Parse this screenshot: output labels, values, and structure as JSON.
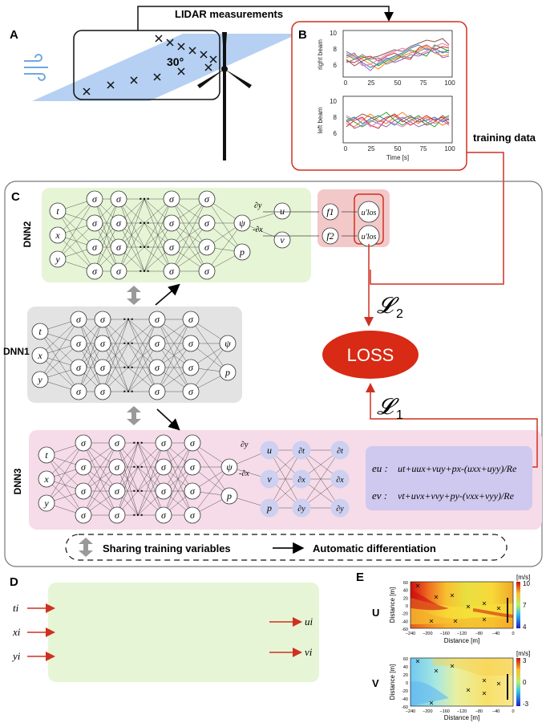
{
  "panels": {
    "a": "A",
    "b": "B",
    "c": "C",
    "d": "D",
    "e": "E"
  },
  "lidar": {
    "title": "LIDAR measurements",
    "angle": "30°"
  },
  "plots": {
    "right": {
      "ylabel": "right beam",
      "yticks": [
        "10",
        "8",
        "6"
      ],
      "xticks": [
        "0",
        "25",
        "50",
        "75",
        "100"
      ]
    },
    "left": {
      "ylabel": "left beam",
      "yticks": [
        "10",
        "8",
        "6"
      ],
      "xticks": [
        "0",
        "25",
        "50",
        "75",
        "100"
      ],
      "xlabel": "Time [s]"
    }
  },
  "training_data": "training data",
  "networks": {
    "dnn1": "DNN1",
    "dnn2": "DNN2",
    "dnn3": "DNN3"
  },
  "symbols": {
    "t": "t",
    "x": "x",
    "y": "y",
    "sigma": "σ",
    "dots": "⋯",
    "psi": "ψ",
    "p": "p",
    "u": "u",
    "v": "v",
    "dy": "∂y",
    "mdx": "-∂x",
    "dt": "∂t",
    "dx": "∂x",
    "f1": "f1",
    "f2": "f2",
    "ulos1": "u'los",
    "ulos2": "u'los"
  },
  "loss": {
    "label": "LOSS",
    "l2": "𝓛",
    "l2sub": "2",
    "l1": "𝓛",
    "l1sub": "1"
  },
  "equations": {
    "eu_lhs": "eu :",
    "eu": "ut+uux+vuy+px-(uxx+uyy)/Re",
    "ev_lhs": "ev :",
    "ev": "vt+uvx+vvy+py-(vxx+vyy)/Re"
  },
  "legend": {
    "share": "Sharing training variables",
    "auto": "Automatic differentiation"
  },
  "d_inputs": [
    "ti",
    "xi",
    "yi"
  ],
  "d_outputs": [
    "ui",
    "vi"
  ],
  "fields": {
    "u": {
      "label": "U",
      "unit": "[m/s]",
      "cmax": "10",
      "cmid": "7",
      "cmin": "4"
    },
    "v": {
      "label": "V",
      "unit": "[m/s]",
      "cmax": "3",
      "cmid": "0",
      "cmin": "-3"
    },
    "yticks": [
      "60",
      "40",
      "20",
      "0",
      "-20",
      "-40",
      "-60"
    ],
    "xticks": [
      "−240",
      "−200",
      "−160",
      "−120",
      "−80",
      "−40",
      "0"
    ],
    "xlabel": "Distance [m]",
    "ylabel": "Distance [m]"
  }
}
